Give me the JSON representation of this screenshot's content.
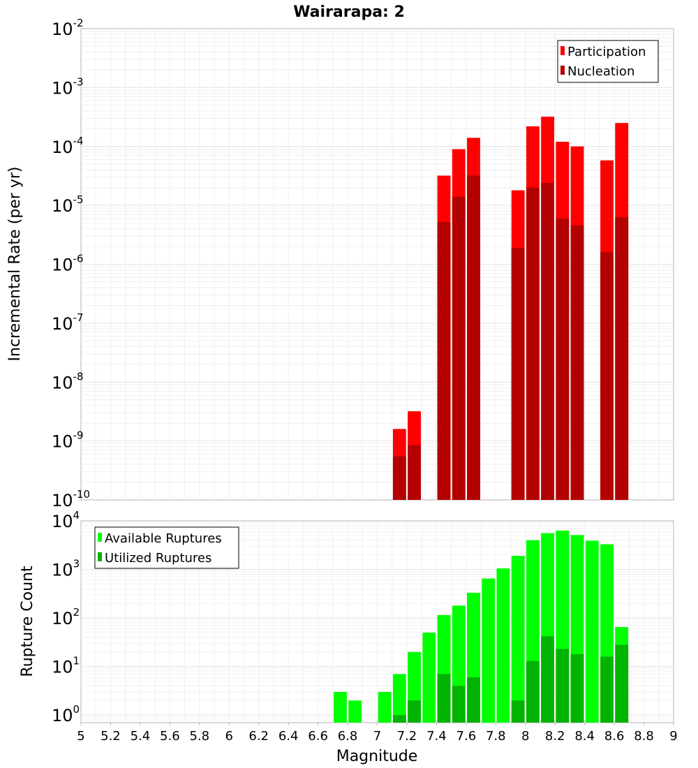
{
  "chart_data": [
    {
      "type": "bar",
      "title": "Wairarapa: 2",
      "xlabel": "",
      "ylabel": "Incremental Rate (per yr)",
      "yscale": "log",
      "ylim": [
        1e-10,
        0.01
      ],
      "xlim": [
        5,
        9
      ],
      "grid": true,
      "legend_position": "top-right",
      "bar_width": 0.1,
      "series": [
        {
          "name": "Participation",
          "color": "#ff0000",
          "points": [
            {
              "x": 7.15,
              "y": 1.6e-09
            },
            {
              "x": 7.25,
              "y": 3.2e-09
            },
            {
              "x": 7.45,
              "y": 3.2e-05
            },
            {
              "x": 7.55,
              "y": 9e-05
            },
            {
              "x": 7.65,
              "y": 0.00014
            },
            {
              "x": 7.95,
              "y": 1.8e-05
            },
            {
              "x": 8.05,
              "y": 0.00022
            },
            {
              "x": 8.15,
              "y": 0.00032
            },
            {
              "x": 8.25,
              "y": 0.00012
            },
            {
              "x": 8.35,
              "y": 0.0001
            },
            {
              "x": 8.55,
              "y": 5.8e-05
            },
            {
              "x": 8.65,
              "y": 0.00025
            }
          ]
        },
        {
          "name": "Nucleation",
          "color": "#b30000",
          "points": [
            {
              "x": 7.15,
              "y": 5.5e-10
            },
            {
              "x": 7.25,
              "y": 8.5e-10
            },
            {
              "x": 7.45,
              "y": 5.2e-06
            },
            {
              "x": 7.55,
              "y": 1.4e-05
            },
            {
              "x": 7.65,
              "y": 3.2e-05
            },
            {
              "x": 7.95,
              "y": 1.9e-06
            },
            {
              "x": 8.05,
              "y": 2e-05
            },
            {
              "x": 8.15,
              "y": 2.4e-05
            },
            {
              "x": 8.25,
              "y": 6e-06
            },
            {
              "x": 8.35,
              "y": 4.6e-06
            },
            {
              "x": 8.55,
              "y": 1.6e-06
            },
            {
              "x": 8.65,
              "y": 6.3e-06
            }
          ]
        }
      ]
    },
    {
      "type": "bar",
      "title": "",
      "xlabel": "Magnitude",
      "ylabel": "Rupture Count",
      "yscale": "log",
      "ylim": [
        0.7,
        10000
      ],
      "xlim": [
        5,
        9
      ],
      "x_ticks": [
        "5",
        "5.2",
        "5.4",
        "5.6",
        "5.8",
        "6",
        "6.2",
        "6.4",
        "6.6",
        "6.8",
        "7",
        "7.2",
        "7.4",
        "7.6",
        "7.8",
        "8",
        "8.2",
        "8.4",
        "8.6",
        "8.8",
        "9"
      ],
      "grid": true,
      "legend_position": "top-left",
      "bar_width": 0.1,
      "series": [
        {
          "name": "Available Ruptures",
          "color": "#00ff00",
          "points": [
            {
              "x": 6.75,
              "y": 3
            },
            {
              "x": 6.85,
              "y": 2
            },
            {
              "x": 7.05,
              "y": 3
            },
            {
              "x": 7.15,
              "y": 7
            },
            {
              "x": 7.25,
              "y": 20
            },
            {
              "x": 7.35,
              "y": 50
            },
            {
              "x": 7.45,
              "y": 115
            },
            {
              "x": 7.55,
              "y": 180
            },
            {
              "x": 7.65,
              "y": 330
            },
            {
              "x": 7.75,
              "y": 650
            },
            {
              "x": 7.85,
              "y": 1050
            },
            {
              "x": 7.95,
              "y": 1900
            },
            {
              "x": 8.05,
              "y": 4000
            },
            {
              "x": 8.15,
              "y": 5600
            },
            {
              "x": 8.25,
              "y": 6300
            },
            {
              "x": 8.35,
              "y": 5100
            },
            {
              "x": 8.45,
              "y": 3900
            },
            {
              "x": 8.55,
              "y": 3300
            },
            {
              "x": 8.65,
              "y": 65
            }
          ]
        },
        {
          "name": "Utilized Ruptures",
          "color": "#00b300",
          "points": [
            {
              "x": 7.15,
              "y": 1
            },
            {
              "x": 7.25,
              "y": 2
            },
            {
              "x": 7.45,
              "y": 7
            },
            {
              "x": 7.55,
              "y": 4
            },
            {
              "x": 7.65,
              "y": 6
            },
            {
              "x": 7.95,
              "y": 2
            },
            {
              "x": 8.05,
              "y": 13
            },
            {
              "x": 8.15,
              "y": 42
            },
            {
              "x": 8.25,
              "y": 23
            },
            {
              "x": 8.35,
              "y": 18
            },
            {
              "x": 8.55,
              "y": 16
            },
            {
              "x": 8.65,
              "y": 28
            }
          ]
        }
      ]
    }
  ]
}
